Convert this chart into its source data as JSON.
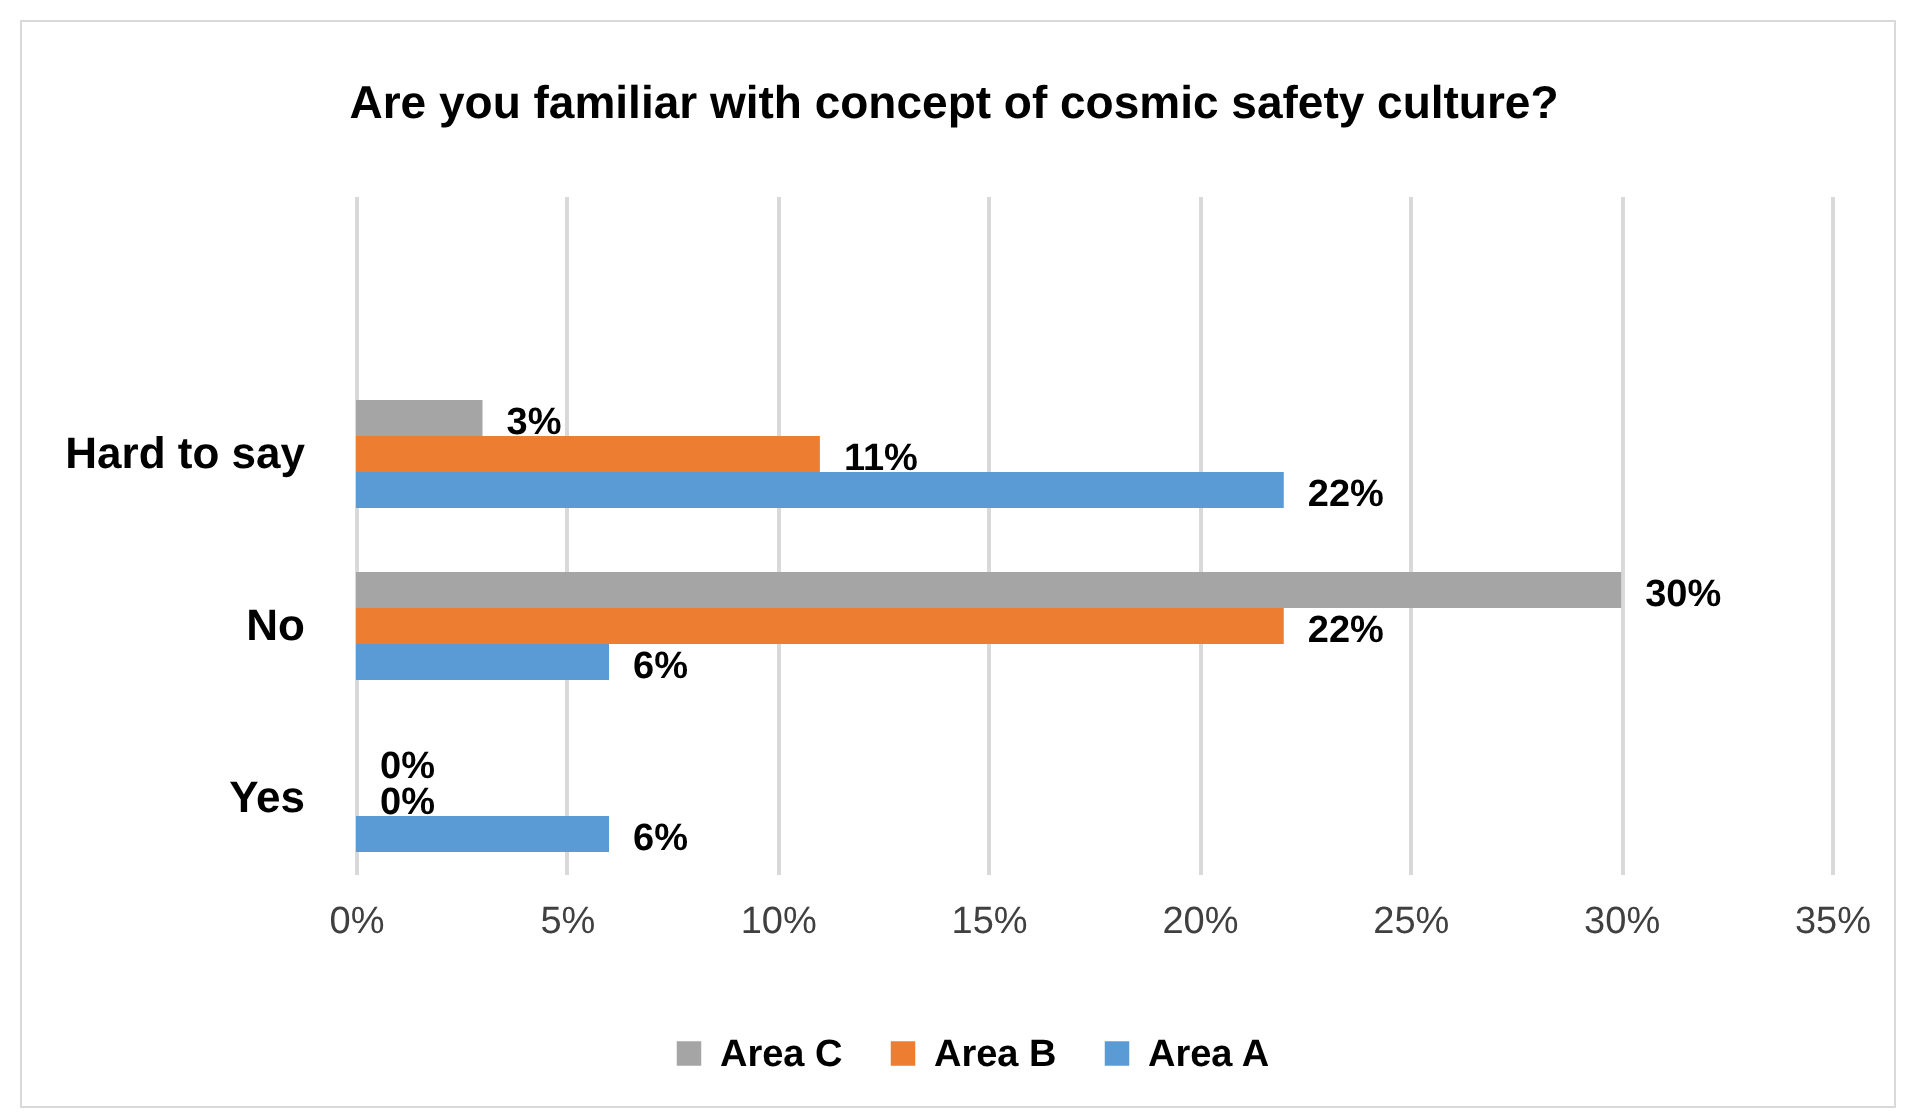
{
  "chart_data": {
    "type": "bar",
    "orientation": "horizontal",
    "title": "Are you familiar with concept of cosmic safety culture?",
    "categories": [
      "Hard to say",
      "No",
      "Yes"
    ],
    "series": [
      {
        "name": "Area C",
        "color": "#a5a5a5",
        "values": [
          3,
          30,
          0
        ],
        "value_labels": [
          "3%",
          "30%",
          "0%"
        ]
      },
      {
        "name": "Area B",
        "color": "#ed7d31",
        "values": [
          11,
          22,
          0
        ],
        "value_labels": [
          "11%",
          "22%",
          "0%"
        ]
      },
      {
        "name": "Area A",
        "color": "#5b9bd5",
        "values": [
          22,
          6,
          6
        ],
        "value_labels": [
          "22%",
          "6%",
          "6%"
        ]
      }
    ],
    "xlim": [
      0,
      35
    ],
    "xticks": [
      {
        "value": 0,
        "label": "0%"
      },
      {
        "value": 5,
        "label": "5%"
      },
      {
        "value": 10,
        "label": "10%"
      },
      {
        "value": 15,
        "label": "15%"
      },
      {
        "value": 20,
        "label": "20%"
      },
      {
        "value": 25,
        "label": "25%"
      },
      {
        "value": 30,
        "label": "30%"
      },
      {
        "value": 35,
        "label": "35%"
      }
    ],
    "grid": "x",
    "legend": "bottom"
  }
}
